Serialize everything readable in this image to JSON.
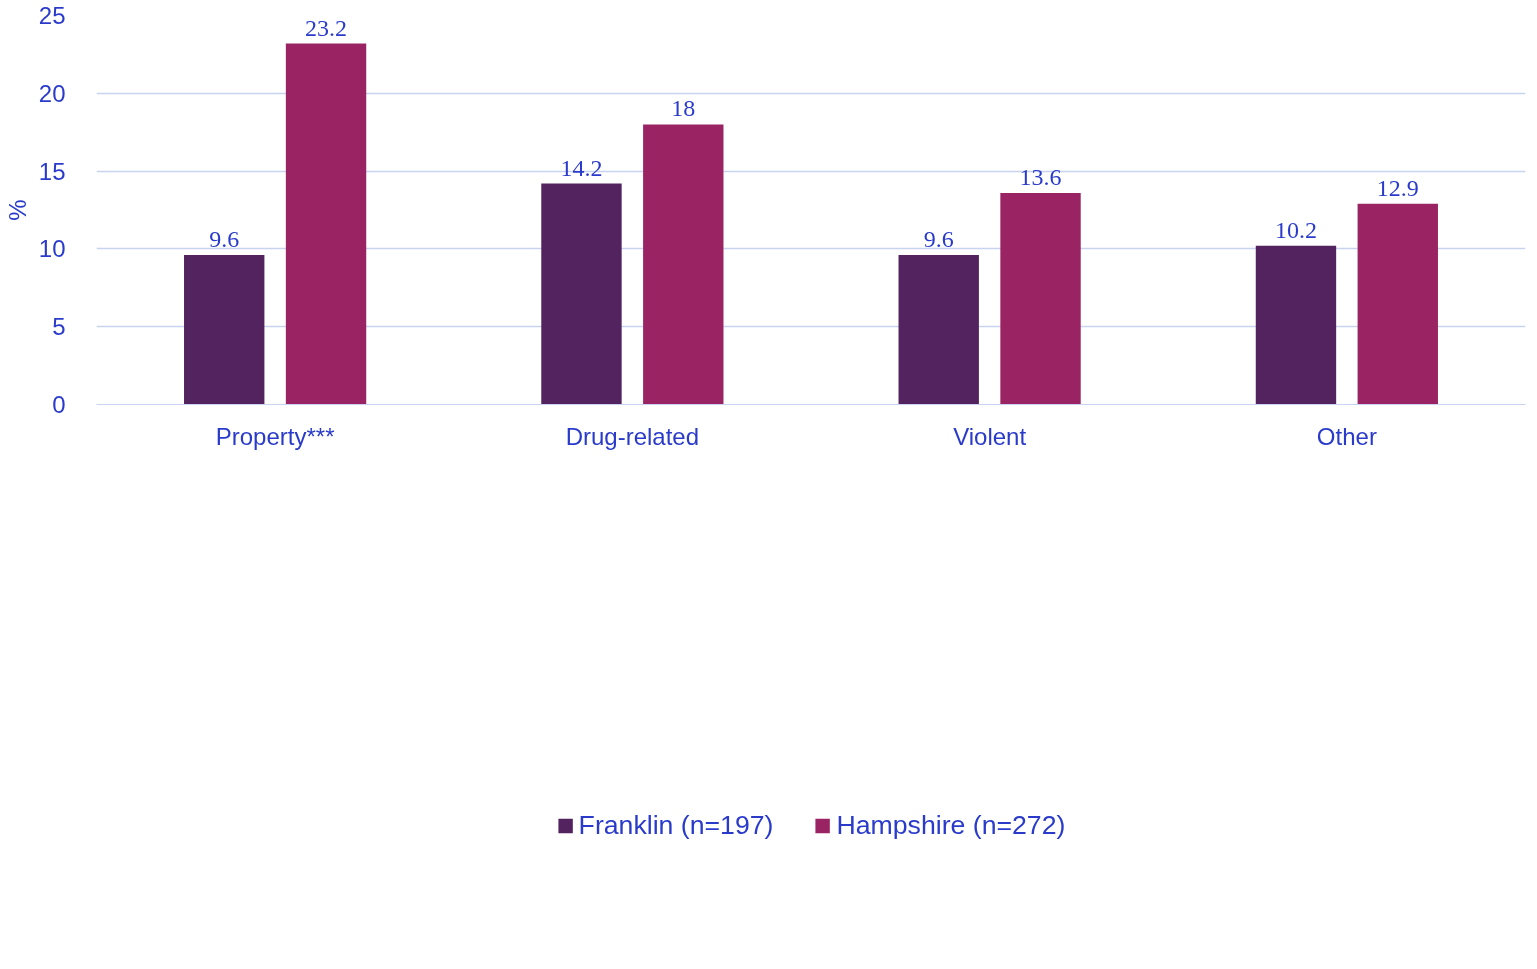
{
  "chart_data": {
    "type": "bar",
    "ylabel": "%",
    "categories": [
      "Property***",
      "Drug-related",
      "Violent",
      "Other"
    ],
    "series": [
      {
        "name": "Franklin (n=197)",
        "color": "#52235e",
        "values": [
          9.6,
          14.2,
          9.6,
          10.2
        ]
      },
      {
        "name": "Hampshire (n=272)",
        "color": "#9a2463",
        "values": [
          23.2,
          18,
          13.6,
          12.9
        ]
      }
    ],
    "ylim": [
      0,
      25
    ],
    "yticks": [
      0,
      5,
      10,
      15,
      20,
      25
    ],
    "grid": "y",
    "legend": "bottom",
    "data_labels": true
  }
}
